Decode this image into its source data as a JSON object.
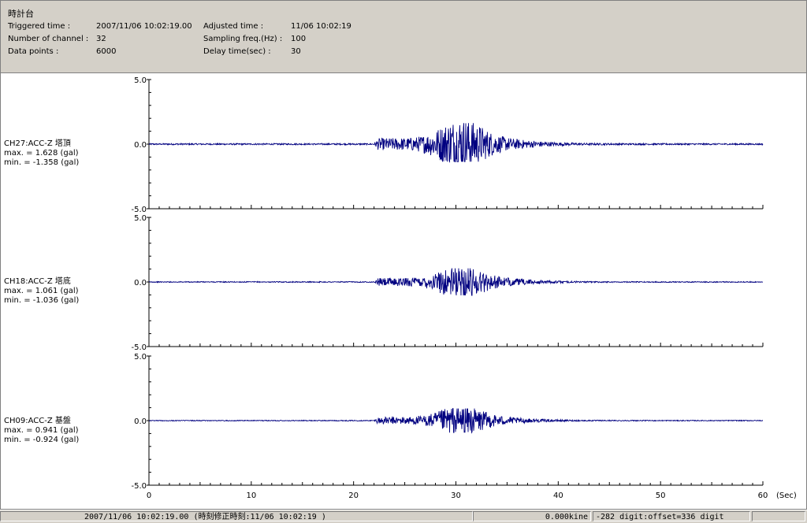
{
  "header": {
    "title": "時計台",
    "triggered_time_label": "Triggered time :",
    "triggered_time_value": "2007/11/06 10:02:19.00",
    "channels_label": "Number of channel :",
    "channels_value": "32",
    "data_points_label": "Data points :",
    "data_points_value": "6000",
    "adjusted_time_label": "Adjusted time :",
    "adjusted_time_value": "11/06 10:02:19",
    "sampling_label": "Sampling freq.(Hz) :",
    "sampling_value": "100",
    "delay_label": "Delay time(sec) :",
    "delay_value": "30"
  },
  "chart_data": {
    "type": "line",
    "x_label": "(Sec)",
    "x_range": [
      0,
      60
    ],
    "x_ticks": [
      "0",
      "10",
      "20",
      "30",
      "40",
      "50",
      "60"
    ],
    "series_color": "#000080",
    "panels": [
      {
        "name": "CH27:ACC-Z 塔頂",
        "max_text": "max. = 1.628 (gal)",
        "min_text": "min. = -1.358 (gal)",
        "max": 1.628,
        "min": -1.358,
        "y_range": [
          -5.0,
          5.0
        ],
        "y_ticks": [
          "5.0",
          "0.0",
          "-5.0"
        ]
      },
      {
        "name": "CH18:ACC-Z 塔底",
        "max_text": "max. = 1.061 (gal)",
        "min_text": "min. = -1.036 (gal)",
        "max": 1.061,
        "min": -1.036,
        "y_range": [
          -5.0,
          5.0
        ],
        "y_ticks": [
          "5.0",
          "0.0",
          "-5.0"
        ]
      },
      {
        "name": "CH09:ACC-Z 基盤",
        "max_text": "max. = 0.941 (gal)",
        "min_text": "min. = -0.924 (gal)",
        "max": 0.941,
        "min": -0.924,
        "y_range": [
          -5.0,
          5.0
        ],
        "y_ticks": [
          "5.0",
          "0.0",
          "-5.0"
        ]
      }
    ]
  },
  "status": {
    "time": "2007/11/06 10:02:19.00  (時刻修正時刻:11/06 10:02:19  )",
    "velocity": "0.000kine",
    "digit": "-282 digit:offset=336 digit"
  }
}
